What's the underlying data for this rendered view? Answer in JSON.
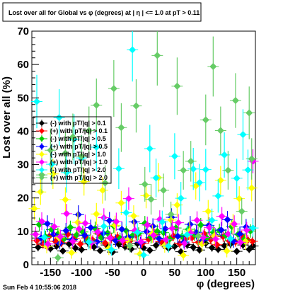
{
  "title": "Lost over all for Global vs φ (degrees) at | η | <= 1.0 at pT > 0.11",
  "footer": "Sun Feb  4 10:55:06 2018",
  "chart_data": {
    "type": "scatter",
    "title": "Lost over all for Global vs φ (degrees) at | η | <= 1.0 at pT > 0.11",
    "xlabel": "φ (degrees)",
    "ylabel": "Lost over all (%)",
    "xlim": [
      -180,
      180
    ],
    "ylim": [
      0,
      70
    ],
    "xticks": [
      -150,
      -100,
      -50,
      0,
      50,
      100,
      150
    ],
    "yticks": [
      0,
      10,
      20,
      30,
      40,
      50,
      60,
      70
    ],
    "grid": false,
    "legend_position": "upper-left",
    "series": [
      {
        "name": "(-) with pT/|q| > 0.1",
        "color": "#000000",
        "marker": "diamond",
        "x": [
          -170,
          -160,
          -150,
          -140,
          -130,
          -120,
          -110,
          -100,
          -90,
          -80,
          -70,
          -60,
          -50,
          -40,
          -30,
          -20,
          -10,
          0,
          10,
          20,
          30,
          40,
          50,
          60,
          70,
          80,
          90,
          100,
          110,
          120,
          130,
          140,
          150,
          160,
          170,
          176
        ],
        "y": [
          5.2,
          6.5,
          4.8,
          5.6,
          4.1,
          6.2,
          5.0,
          4.5,
          6.8,
          5.3,
          4.2,
          5.9,
          3.8,
          6.1,
          5.4,
          4.7,
          6.3,
          5.0,
          4.3,
          5.8,
          6.6,
          4.9,
          5.5,
          3.9,
          6.0,
          5.2,
          4.4,
          6.4,
          5.1,
          4.6,
          5.7,
          6.2,
          4.0,
          5.9,
          4.6,
          5.6
        ],
        "err": [
          1.2,
          1.3,
          1.1,
          1.2,
          1.0,
          1.3,
          1.2,
          1.1,
          1.4,
          1.2,
          1.0,
          1.3,
          1.0,
          1.3,
          1.2,
          1.1,
          1.3,
          1.2,
          1.0,
          1.3,
          1.4,
          1.1,
          1.2,
          1.0,
          1.3,
          1.2,
          1.1,
          1.3,
          1.2,
          1.1,
          1.3,
          1.3,
          1.0,
          1.3,
          1.1,
          1.2
        ]
      },
      {
        "name": "(+) with pT/|q| > 0.1",
        "color": "#ff0000",
        "marker": "diamond",
        "x": [
          -172,
          -162,
          -152,
          -142,
          -132,
          -122,
          -112,
          -102,
          -92,
          -82,
          -72,
          -62,
          -52,
          -42,
          -32,
          -22,
          -12,
          -2,
          8,
          18,
          28,
          38,
          48,
          58,
          68,
          78,
          88,
          98,
          108,
          118,
          128,
          138,
          148,
          158,
          168,
          175
        ],
        "y": [
          7.2,
          6.1,
          8.5,
          7.0,
          6.6,
          9.1,
          7.8,
          6.2,
          8.0,
          7.4,
          9.3,
          6.5,
          7.9,
          8.3,
          6.8,
          7.1,
          8.8,
          6.4,
          7.6,
          9.0,
          6.9,
          7.3,
          8.6,
          6.3,
          7.7,
          8.1,
          6.7,
          9.2,
          7.5,
          6.0,
          8.4,
          7.1,
          6.8,
          8.7,
          7.4,
          7.0
        ],
        "err": [
          1.4,
          1.3,
          1.5,
          1.4,
          1.3,
          1.6,
          1.4,
          1.3,
          1.5,
          1.4,
          1.6,
          1.3,
          1.5,
          1.5,
          1.4,
          1.4,
          1.5,
          1.3,
          1.4,
          1.6,
          1.4,
          1.4,
          1.5,
          1.3,
          1.4,
          1.5,
          1.4,
          1.6,
          1.4,
          1.3,
          1.5,
          1.4,
          1.4,
          1.5,
          1.4,
          1.4
        ]
      },
      {
        "name": "(-) with pT/|q| > 0.5",
        "color": "#00cc00",
        "marker": "diamond",
        "x": [
          -168,
          -158,
          -148,
          -138,
          -128,
          -118,
          -108,
          -98,
          -88,
          -78,
          -68,
          -58,
          -48,
          -38,
          -28,
          -18,
          -8,
          2,
          12,
          22,
          32,
          42,
          52,
          62,
          72,
          82,
          92,
          102,
          112,
          122,
          132,
          142,
          152,
          162,
          172
        ],
        "y": [
          12.0,
          8.4,
          10.5,
          9.2,
          7.8,
          11.2,
          8.9,
          9.8,
          7.4,
          10.9,
          8.1,
          9.5,
          11.6,
          7.9,
          10.2,
          8.7,
          9.3,
          12.4,
          8.2,
          10.0,
          9.6,
          7.7,
          11.0,
          8.5,
          10.6,
          9.0,
          11.9,
          8.0,
          9.7,
          10.3,
          8.8,
          11.4,
          9.1,
          7.6,
          10.1
        ],
        "err": [
          2.1,
          1.8,
          2.0,
          1.9,
          1.7,
          2.0,
          1.8,
          1.9,
          1.7,
          2.0,
          1.8,
          1.9,
          2.1,
          1.7,
          2.0,
          1.8,
          1.9,
          2.2,
          1.8,
          2.0,
          1.9,
          1.7,
          2.0,
          1.8,
          2.0,
          1.9,
          2.1,
          1.8,
          1.9,
          2.0,
          1.8,
          2.1,
          1.9,
          1.7,
          2.0
        ]
      },
      {
        "name": "(+) with pT/|q| > 0.5",
        "color": "#0000ff",
        "marker": "diamond",
        "x": [
          -165,
          -155,
          -145,
          -135,
          -125,
          -115,
          -105,
          -95,
          -85,
          -75,
          -65,
          -55,
          -45,
          -35,
          -25,
          -15,
          -5,
          5,
          15,
          25,
          35,
          45,
          55,
          65,
          75,
          85,
          95,
          105,
          115,
          125,
          135,
          145,
          155,
          165
        ],
        "y": [
          8.0,
          12.3,
          9.1,
          6.4,
          10.2,
          7.5,
          15.0,
          8.8,
          11.1,
          6.9,
          9.4,
          13.2,
          7.2,
          10.6,
          8.3,
          12.8,
          6.6,
          9.9,
          11.5,
          7.8,
          10.8,
          14.2,
          8.5,
          6.8,
          12.1,
          9.7,
          7.3,
          11.8,
          8.9,
          10.4,
          13.5,
          7.0,
          9.2,
          11.3
        ],
        "err": [
          2.0,
          2.5,
          2.1,
          1.8,
          2.3,
          1.9,
          2.8,
          2.1,
          2.4,
          1.9,
          2.2,
          2.6,
          1.9,
          2.3,
          2.1,
          2.5,
          1.8,
          2.2,
          2.4,
          2.0,
          2.3,
          2.7,
          2.1,
          1.9,
          2.5,
          2.2,
          1.9,
          2.4,
          2.1,
          2.3,
          2.6,
          1.9,
          2.2,
          2.4
        ]
      },
      {
        "name": "(-) with pT/|q| > 1.0",
        "color": "#ffff00",
        "marker": "diamond",
        "x": [
          -176,
          -166,
          -156,
          -146,
          -136,
          -126,
          -116,
          -106,
          -96,
          -86,
          -76,
          -66,
          -56,
          -46,
          -36,
          -26,
          -16,
          -6,
          4,
          14,
          24,
          34,
          44,
          54,
          64,
          74,
          84,
          94,
          104,
          114,
          124,
          134,
          144,
          154,
          164,
          174
        ],
        "y": [
          16.8,
          21.8,
          5.5,
          27.2,
          8.1,
          19.5,
          3.6,
          12.7,
          24.9,
          6.8,
          15.2,
          22.3,
          4.9,
          11.8,
          18.5,
          7.4,
          14.6,
          3.2,
          20.7,
          9.3,
          26.1,
          5.8,
          13.4,
          17.9,
          2.8,
          10.1,
          23.6,
          6.2,
          16.0,
          8.7,
          25.3,
          4.1,
          12.2,
          19.8,
          7.0,
          23.0
        ],
        "err": [
          3.5,
          3.9,
          2.1,
          4.5,
          2.6,
          3.7,
          1.8,
          3.0,
          4.2,
          2.4,
          3.3,
          4.0,
          2.0,
          2.9,
          3.6,
          2.5,
          3.2,
          1.7,
          3.8,
          2.7,
          4.4,
          2.2,
          3.1,
          3.5,
          1.6,
          2.8,
          4.1,
          2.3,
          3.4,
          2.6,
          4.3,
          1.9,
          3.0,
          3.7,
          2.5,
          4.0
        ]
      },
      {
        "name": "(+) with pT/|q| > 1.0",
        "color": "#ff00ff",
        "marker": "diamond",
        "x": [
          -174,
          -164,
          -154,
          -144,
          -134,
          -124,
          -114,
          -104,
          -94,
          -84,
          -74,
          -64,
          -54,
          -44,
          -34,
          -24,
          -14,
          -4,
          6,
          16,
          26,
          36,
          46,
          56,
          66,
          76,
          86,
          96,
          106,
          116,
          126,
          136,
          146,
          156,
          166,
          176
        ],
        "y": [
          9.1,
          13.0,
          6.2,
          11.4,
          8.4,
          15.3,
          7.0,
          10.7,
          12.4,
          6.6,
          9.8,
          14.1,
          8.0,
          12.9,
          7.3,
          19.8,
          10.3,
          6.9,
          11.9,
          8.8,
          13.6,
          7.5,
          10.9,
          12.6,
          6.4,
          9.5,
          13.3,
          8.2,
          11.1,
          7.7,
          14.5,
          9.2,
          12.2,
          6.7,
          10.4,
          31.0
        ],
        "err": [
          2.2,
          2.7,
          1.9,
          2.5,
          2.1,
          2.9,
          2.0,
          2.4,
          2.6,
          1.9,
          2.3,
          2.8,
          2.1,
          2.7,
          2.0,
          3.4,
          2.4,
          2.0,
          2.5,
          2.2,
          2.7,
          2.0,
          2.5,
          2.6,
          1.9,
          2.3,
          2.7,
          2.1,
          2.5,
          2.1,
          2.8,
          2.3,
          2.6,
          2.0,
          2.4,
          3.6
        ]
      },
      {
        "name": "(-) with pT/|q| > 2.0",
        "color": "#00ffff",
        "marker": "diamond",
        "x": [
          -172,
          -160,
          -148,
          -136,
          -124,
          -112,
          -100,
          -88,
          -76,
          -64,
          -52,
          -40,
          -28,
          -18,
          -10,
          0,
          10,
          20,
          30,
          40,
          50,
          60,
          70,
          80,
          90,
          100,
          110,
          120,
          130,
          140,
          150,
          160,
          168,
          176
        ],
        "y": [
          48.9,
          8.2,
          30.1,
          44.1,
          27.6,
          37.6,
          32.0,
          6.8,
          35.2,
          11.5,
          4.5,
          28.8,
          15.6,
          64.4,
          9.7,
          2.9,
          34.8,
          26.0,
          12.8,
          5.6,
          32.5,
          19.9,
          9.0,
          28.7,
          24.6,
          28.5,
          13.3,
          20.6,
          32.9,
          7.8,
          25.9,
          39.0,
          28.4,
          11.0
        ],
        "err": [
          8.0,
          2.5,
          6.2,
          8.5,
          6.0,
          7.5,
          6.8,
          2.2,
          7.2,
          3.0,
          1.8,
          6.1,
          4.0,
          9.5,
          2.8,
          1.4,
          7.1,
          5.8,
          3.4,
          2.0,
          6.9,
          4.9,
          2.7,
          6.3,
          5.6,
          6.2,
          3.5,
          5.0,
          6.8,
          2.4,
          5.9,
          7.6,
          6.1,
          3.0
        ]
      },
      {
        "name": "(+) with pT/|q| > 2.0",
        "color": "#66cc66",
        "marker": "diamond",
        "x": [
          -164,
          -150,
          -138,
          -126,
          -114,
          -100,
          -88,
          -76,
          -62,
          -48,
          -36,
          -22,
          -12,
          2,
          12,
          22,
          32,
          44,
          54,
          64,
          76,
          88,
          100,
          112,
          124,
          136,
          148,
          158,
          170,
          174
        ],
        "y": [
          26.9,
          34.3,
          2.1,
          33.4,
          38.3,
          32.5,
          40.2,
          47.8,
          24.5,
          52.8,
          41.1,
          5.7,
          47.6,
          24.1,
          19.6,
          62.7,
          22.3,
          15.1,
          53.5,
          28.3,
          31.0,
          8.6,
          43.4,
          59.4,
          40.2,
          28.3,
          49.2,
          16.0,
          45.5,
          31.7
        ],
        "err": [
          5.5,
          6.5,
          1.2,
          6.4,
          7.0,
          6.3,
          7.2,
          8.0,
          5.3,
          8.5,
          7.3,
          2.0,
          8.0,
          5.2,
          4.6,
          9.0,
          5.0,
          3.8,
          8.6,
          5.8,
          6.1,
          2.8,
          7.6,
          9.0,
          7.2,
          5.8,
          8.2,
          4.0,
          7.9,
          6.2
        ]
      }
    ]
  }
}
